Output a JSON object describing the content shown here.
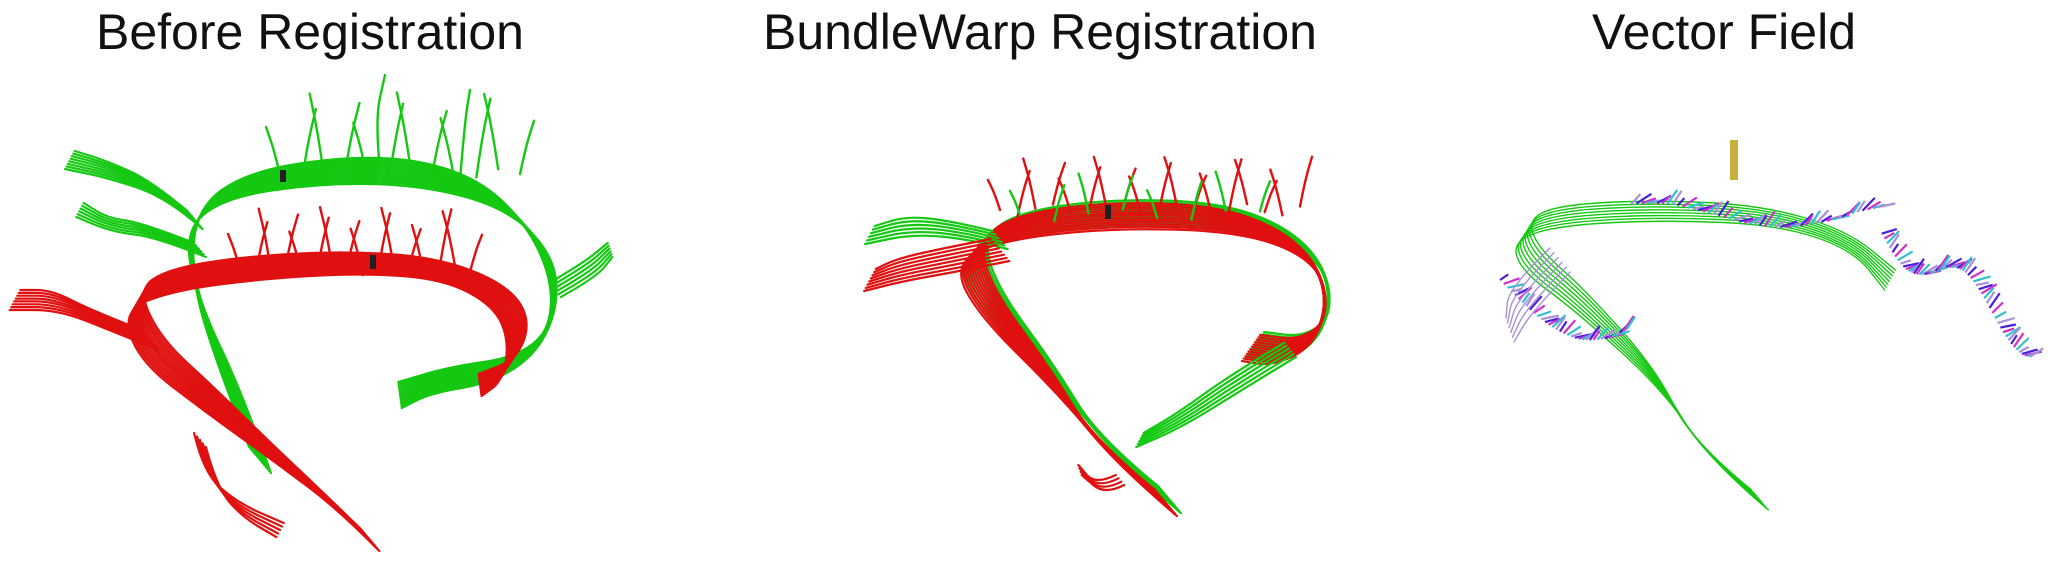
{
  "panels": [
    {
      "title": "Before Registration"
    },
    {
      "title": "BundleWarp Registration"
    },
    {
      "title": "Vector Field"
    }
  ],
  "colors": {
    "static_bundle": "#15c812",
    "moving_bundle": "#e01010",
    "dark_tip": "#202020",
    "vector_blue": "#4a1ee0",
    "vector_magenta": "#d030c8",
    "vector_cyan": "#30c0d0",
    "vector_lilac": "#a890d8"
  },
  "icons": [
    "fiber-bundle-rendering",
    "vector-field-rendering"
  ]
}
